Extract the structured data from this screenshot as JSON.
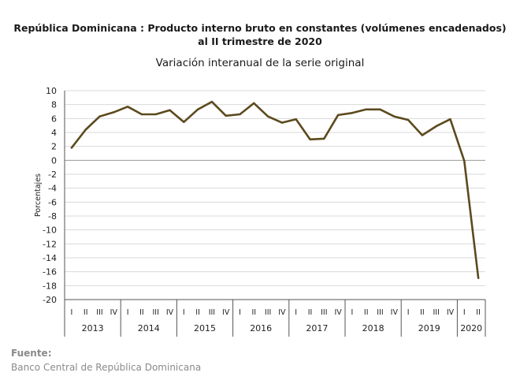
{
  "header": {
    "title_line1": "República Dominicana : Producto interno bruto en constantes (volúmenes encadenados)",
    "title_line2": "al II trimestre de 2020",
    "subtitle": "Variación interanual de la serie original"
  },
  "footer": {
    "source_label": "Fuente:",
    "source_text": "Banco Central de República Dominicana"
  },
  "colors": {
    "line": "#5c4a1e",
    "axis": "#555555",
    "grid": "#d9d9d9"
  },
  "chart_data": {
    "type": "line",
    "ylabel": "Porcentajes",
    "ylim": [
      -20,
      10
    ],
    "yticks": [
      10,
      8,
      6,
      4,
      2,
      0,
      -2,
      -4,
      -6,
      -8,
      -10,
      -12,
      -14,
      -16,
      -18,
      -20
    ],
    "grid": true,
    "quarter_labels": [
      "I",
      "II",
      "III",
      "IV"
    ],
    "years": [
      {
        "label": "2013",
        "quarters": [
          "I",
          "II",
          "III",
          "IV"
        ]
      },
      {
        "label": "2014",
        "quarters": [
          "I",
          "II",
          "III",
          "IV"
        ]
      },
      {
        "label": "2015",
        "quarters": [
          "I",
          "II",
          "III",
          "IV"
        ]
      },
      {
        "label": "2016",
        "quarters": [
          "I",
          "II",
          "III",
          "IV"
        ]
      },
      {
        "label": "2017",
        "quarters": [
          "I",
          "II",
          "III",
          "IV"
        ]
      },
      {
        "label": "2018",
        "quarters": [
          "I",
          "II",
          "III",
          "IV"
        ]
      },
      {
        "label": "2019",
        "quarters": [
          "I",
          "II",
          "III",
          "IV"
        ]
      },
      {
        "label": "2020",
        "quarters": [
          "I",
          "II"
        ]
      }
    ],
    "series": [
      {
        "values": [
          1.8,
          4.4,
          6.3,
          6.9,
          7.7,
          6.6,
          6.6,
          7.2,
          5.5,
          7.3,
          8.4,
          6.4,
          6.6,
          8.2,
          6.3,
          5.4,
          5.9,
          3.0,
          3.1,
          6.5,
          6.8,
          7.3,
          7.3,
          6.3,
          5.8,
          3.6,
          4.9,
          5.9,
          -0.1,
          -16.9
        ]
      }
    ]
  }
}
